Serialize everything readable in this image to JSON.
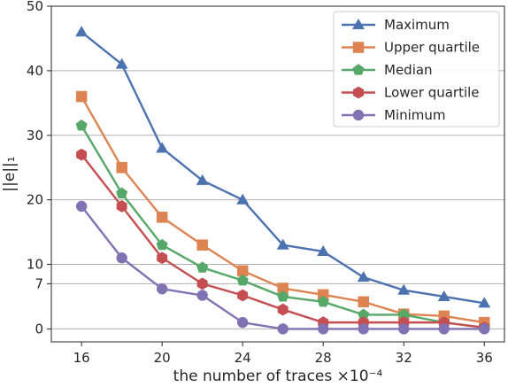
{
  "chart_data": {
    "type": "line",
    "title": "",
    "xlabel": "the number of traces ×10⁻⁴",
    "ylabel": "||e||₁",
    "xlim": [
      14.5,
      37
    ],
    "ylim": [
      -2,
      50
    ],
    "xticks": [
      "16",
      "20",
      "24",
      "28",
      "32",
      "36"
    ],
    "yticks": [
      "0",
      "7",
      "10",
      "20",
      "30",
      "40",
      "50"
    ],
    "grid": "horizontal",
    "legend_position": "top-right",
    "x": [
      16,
      18,
      20,
      22,
      24,
      26,
      28,
      30,
      32,
      34,
      36
    ],
    "series": [
      {
        "name": "Maximum",
        "color": "#4c72b0",
        "marker": "triangle",
        "values": [
          46,
          41,
          28,
          23,
          20,
          13,
          12,
          8,
          6,
          5,
          4
        ]
      },
      {
        "name": "Upper quartile",
        "color": "#dd8452",
        "marker": "square",
        "values": [
          36,
          25,
          17.3,
          13,
          9,
          6.3,
          5.3,
          4.2,
          2.3,
          2,
          1
        ]
      },
      {
        "name": "Median",
        "color": "#55a868",
        "marker": "pentagon",
        "values": [
          31.5,
          21,
          13,
          9.5,
          7.5,
          5,
          4.2,
          2.2,
          2.2,
          1,
          0.2
        ]
      },
      {
        "name": "Lower quartile",
        "color": "#c44e52",
        "marker": "hexagon",
        "values": [
          27,
          19,
          11,
          7,
          5.2,
          3,
          1,
          1,
          1,
          1,
          0.2
        ]
      },
      {
        "name": "Minimum",
        "color": "#8172b3",
        "marker": "circle",
        "values": [
          19,
          11,
          6.2,
          5.2,
          1,
          0,
          0,
          0,
          0,
          0,
          0
        ]
      }
    ]
  }
}
